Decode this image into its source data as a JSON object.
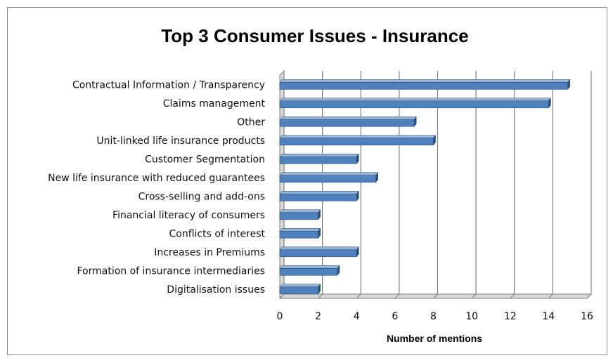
{
  "chart_data": {
    "type": "bar",
    "orientation": "horizontal",
    "title": "Top 3 Consumer Issues - Insurance",
    "xlabel": "Number of mentions",
    "ylabel": "",
    "categories": [
      "Contractual Information / Transparency",
      "Claims management",
      "Other",
      "Unit-linked life insurance products",
      "Customer Segmentation",
      "New life insurance with reduced guarantees",
      "Cross-selling and add-ons",
      "Financial literacy of consumers",
      "Conflicts of interest",
      "Increases in Premiums",
      "Formation of insurance intermediaries",
      "Digitalisation issues"
    ],
    "values": [
      15,
      14,
      7,
      8,
      4,
      5,
      4,
      2,
      2,
      4,
      3,
      2
    ],
    "xlim": [
      0,
      16
    ],
    "xticks": [
      "0",
      "2",
      "4",
      "6",
      "8",
      "10",
      "12",
      "14",
      "16"
    ],
    "grid": "vertical",
    "legend": "none",
    "bar_color": "#4f81bd",
    "bar_edge_color": "#2c4d75",
    "style": "3d"
  }
}
